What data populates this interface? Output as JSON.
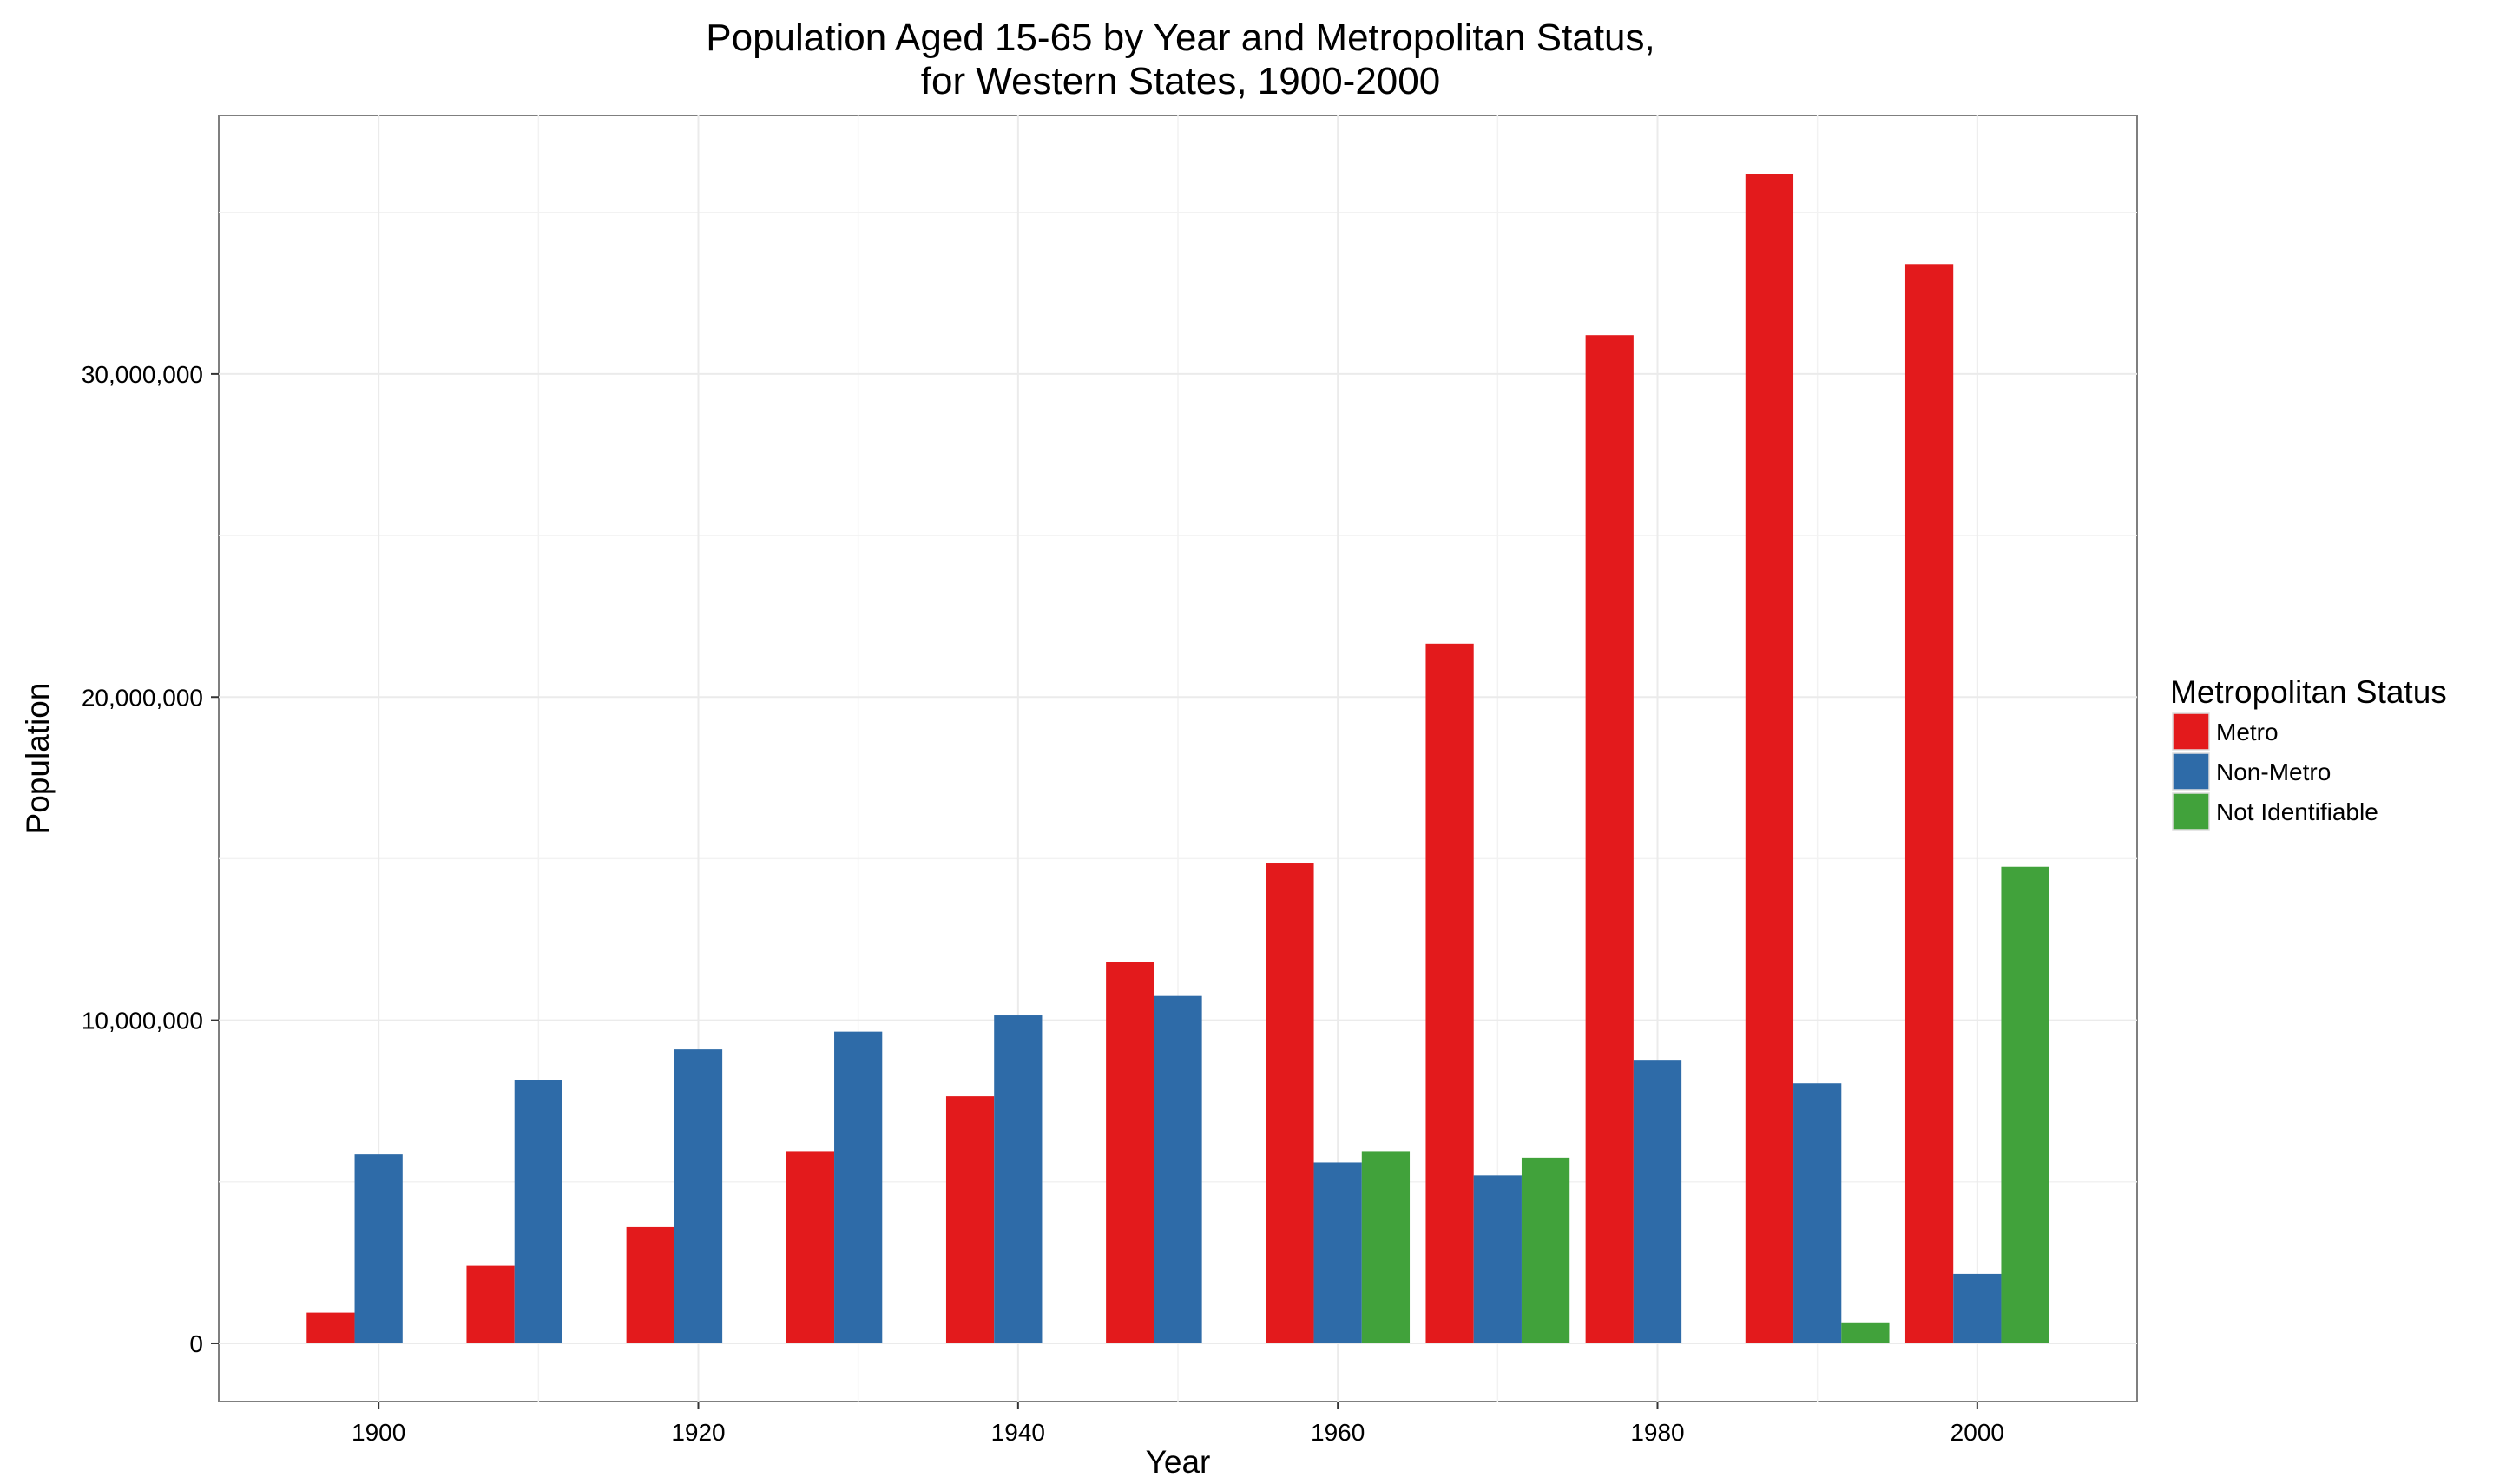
{
  "chart_data": {
    "type": "bar",
    "title_lines": [
      "Population Aged 15-65 by Year and Metropolitan Status,",
      "for Western States, 1900-2000"
    ],
    "xlabel": "Year",
    "ylabel": "Population",
    "x": [
      1900,
      1910,
      1920,
      1930,
      1940,
      1950,
      1960,
      1970,
      1980,
      1990,
      2000
    ],
    "x_ticks": [
      1900,
      1920,
      1940,
      1960,
      1980,
      2000
    ],
    "x_tick_labels": [
      "1900",
      "1920",
      "1940",
      "1960",
      "1980",
      "2000"
    ],
    "xlim": [
      1890,
      2010
    ],
    "y_ticks": [
      0,
      10000000,
      20000000,
      30000000
    ],
    "y_tick_labels": [
      "0",
      "10,000,000",
      "20,000,000",
      "30,000,000"
    ],
    "ylim": [
      -1800000,
      38000000
    ],
    "grid": true,
    "legend": {
      "title": "Metropolitan Status",
      "position": "right"
    },
    "series": [
      {
        "name": "Metro",
        "color": "#E31A1C",
        "values": [
          950000,
          2400000,
          3600000,
          5950000,
          7650000,
          11800000,
          14850000,
          21650000,
          31200000,
          36200000,
          33400000
        ]
      },
      {
        "name": "Non-Metro",
        "color": "#2E6BA8",
        "values": [
          5850000,
          8150000,
          9100000,
          9650000,
          10150000,
          10750000,
          5600000,
          5200000,
          8750000,
          8050000,
          2150000
        ]
      },
      {
        "name": "Not Identifiable",
        "color": "#41A23B",
        "values": [
          null,
          null,
          null,
          null,
          null,
          null,
          5950000,
          5750000,
          null,
          650000,
          14750000
        ]
      }
    ]
  }
}
